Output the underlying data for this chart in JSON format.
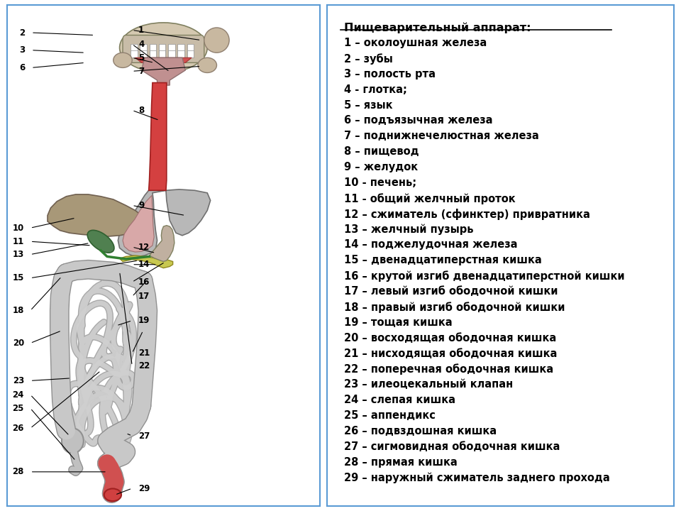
{
  "title": "Пищеварительный аппарат:",
  "legend_items": [
    "1 – околоушная железа",
    "2 – зубы",
    "3 – полость рта",
    "4 - глотка;",
    "5 – язык",
    "6 – подъязычная железа",
    "7 – поднижнечелюстная железа",
    "8 – пищевод",
    "9 – желудок",
    "10 - печень;",
    "11 - общий желчный проток",
    "12 – сжиматель (сфинктер) привратника",
    "13 – желчный пузырь",
    "14 – поджелудочная железа",
    "15 – двенадцатиперстная кишка",
    "16 – крутой изгиб двенадцатиперстной кишки",
    "17 – левый изгиб ободочной кишки",
    "18 – правый изгиб ободочной кишки",
    "19 – тощая кишка",
    "20 – восходящая ободочная кишка",
    "21 – нисходящая ободочная кишка",
    "22 – поперечная ободочная кишка",
    "23 – илеоцекальный клапан",
    "24 – слепая кишка",
    "25 – аппендикс",
    "26 – подвздошная кишка",
    "27 – сигмовидная ободочная кишка",
    "28 – прямая кишка",
    "29 – наружный сжиматель заднего прохода"
  ],
  "bg_color": "#ffffff",
  "border_color": "#5b9bd5",
  "text_color": "#000000",
  "title_fontsize": 11.5,
  "legend_fontsize": 10.5
}
